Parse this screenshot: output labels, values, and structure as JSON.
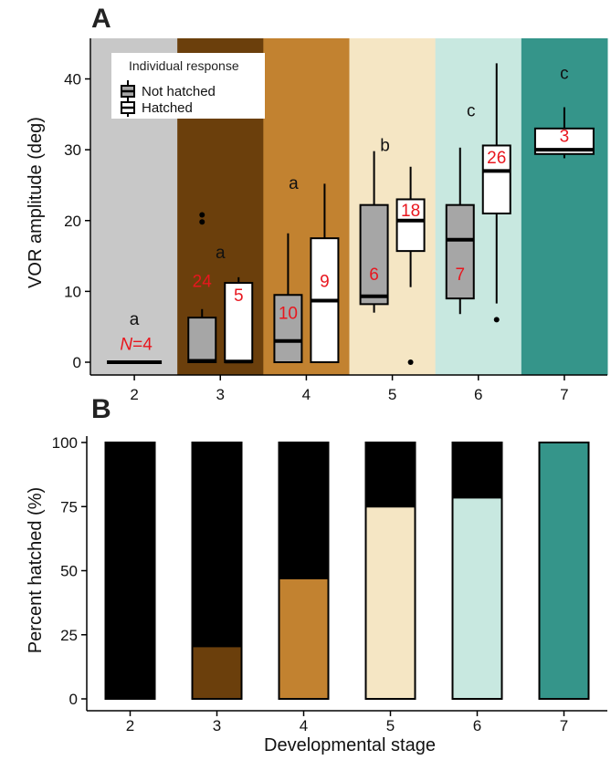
{
  "chart_data": [
    {
      "type": "box",
      "panel_label": "A",
      "ylabel": "VOR amplitude (deg)",
      "ylim": [
        -2,
        45
      ],
      "yticks": [
        0,
        10,
        20,
        30,
        40
      ],
      "categories": [
        "2",
        "3",
        "4",
        "5",
        "6",
        "7"
      ],
      "stage_colors": [
        "#c8c8c8",
        "#6b3f0c",
        "#c28230",
        "#f5e6c4",
        "#c8e8e0",
        "#35958a"
      ],
      "grid": false,
      "legend": {
        "title": "Individual response",
        "entries": [
          "Not hatched",
          "Hatched"
        ],
        "position": "top-left"
      },
      "series": [
        {
          "name": "Not hatched",
          "color": "#a6a6a6",
          "boxes": [
            {
              "stage": "2",
              "whisker_low": 0,
              "q1": 0,
              "median": 0,
              "q3": 0,
              "whisker_high": 0,
              "outliers": [],
              "n": "4"
            },
            {
              "stage": "3",
              "whisker_low": 0,
              "q1": 0,
              "median": 0.2,
              "q3": 6.3,
              "whisker_high": 7.5,
              "outliers": [
                19.8,
                20.8
              ],
              "n": "24"
            },
            {
              "stage": "4",
              "whisker_low": 0,
              "q1": 0,
              "median": 3.0,
              "q3": 9.5,
              "whisker_high": 18.2,
              "outliers": [],
              "n": "10"
            },
            {
              "stage": "5",
              "whisker_low": 7.0,
              "q1": 8.2,
              "median": 9.3,
              "q3": 22.2,
              "whisker_high": 29.8,
              "outliers": [],
              "n": "6"
            },
            {
              "stage": "6",
              "whisker_low": 6.8,
              "q1": 9.0,
              "median": 17.3,
              "q3": 22.2,
              "whisker_high": 30.3,
              "outliers": [],
              "n": "7"
            }
          ]
        },
        {
          "name": "Hatched",
          "color": "#ffffff",
          "boxes": [
            {
              "stage": "3",
              "whisker_low": 0,
              "q1": 0,
              "median": 0.1,
              "q3": 11.2,
              "whisker_high": 12.0,
              "outliers": [],
              "n": "5"
            },
            {
              "stage": "4",
              "whisker_low": 0,
              "q1": 0,
              "median": 8.7,
              "q3": 17.5,
              "whisker_high": 25.2,
              "outliers": [],
              "n": "9"
            },
            {
              "stage": "5",
              "whisker_low": 10.6,
              "q1": 15.7,
              "median": 20.0,
              "q3": 23.0,
              "whisker_high": 27.6,
              "outliers": [
                0
              ],
              "n": "18"
            },
            {
              "stage": "6",
              "whisker_low": 8.3,
              "q1": 21.0,
              "median": 27.0,
              "q3": 30.6,
              "whisker_high": 42.2,
              "outliers": [
                6.0
              ],
              "n": "26"
            },
            {
              "stage": "7",
              "whisker_low": 28.8,
              "q1": 29.4,
              "median": 30.0,
              "q3": 33.0,
              "whisker_high": 36.0,
              "outliers": [],
              "n": "3"
            }
          ]
        }
      ],
      "annotations": [
        {
          "stage": "2",
          "text": "a",
          "y": 5.3
        },
        {
          "stage": "3",
          "text": "a",
          "y": 14.7
        },
        {
          "stage": "4",
          "text": "a",
          "y": 24.5
        },
        {
          "stage": "5",
          "text": "b",
          "y": 29.8
        },
        {
          "stage": "6",
          "text": "c",
          "y": 34.7
        },
        {
          "stage": "7",
          "text": "c",
          "y": 40.0
        }
      ],
      "n_prefix": "N=",
      "n_label_first": "4"
    },
    {
      "type": "bar",
      "panel_label": "B",
      "xlabel": "Developmental stage",
      "ylabel": "Percent hatched (%)",
      "ylim": [
        0,
        100
      ],
      "yticks": [
        0,
        25,
        50,
        75,
        100
      ],
      "categories": [
        "2",
        "3",
        "4",
        "5",
        "6",
        "7"
      ],
      "stacked": true,
      "series": [
        {
          "name": "Hatched",
          "values": [
            0,
            20.5,
            47,
            75,
            78.5,
            100
          ],
          "colors": [
            "#c8c8c8",
            "#6b3f0c",
            "#c28230",
            "#f5e6c4",
            "#c8e8e0",
            "#35958a"
          ]
        },
        {
          "name": "Not hatched",
          "values": [
            100,
            79.5,
            53,
            25,
            21.5,
            0
          ],
          "color": "#000000"
        }
      ]
    }
  ]
}
